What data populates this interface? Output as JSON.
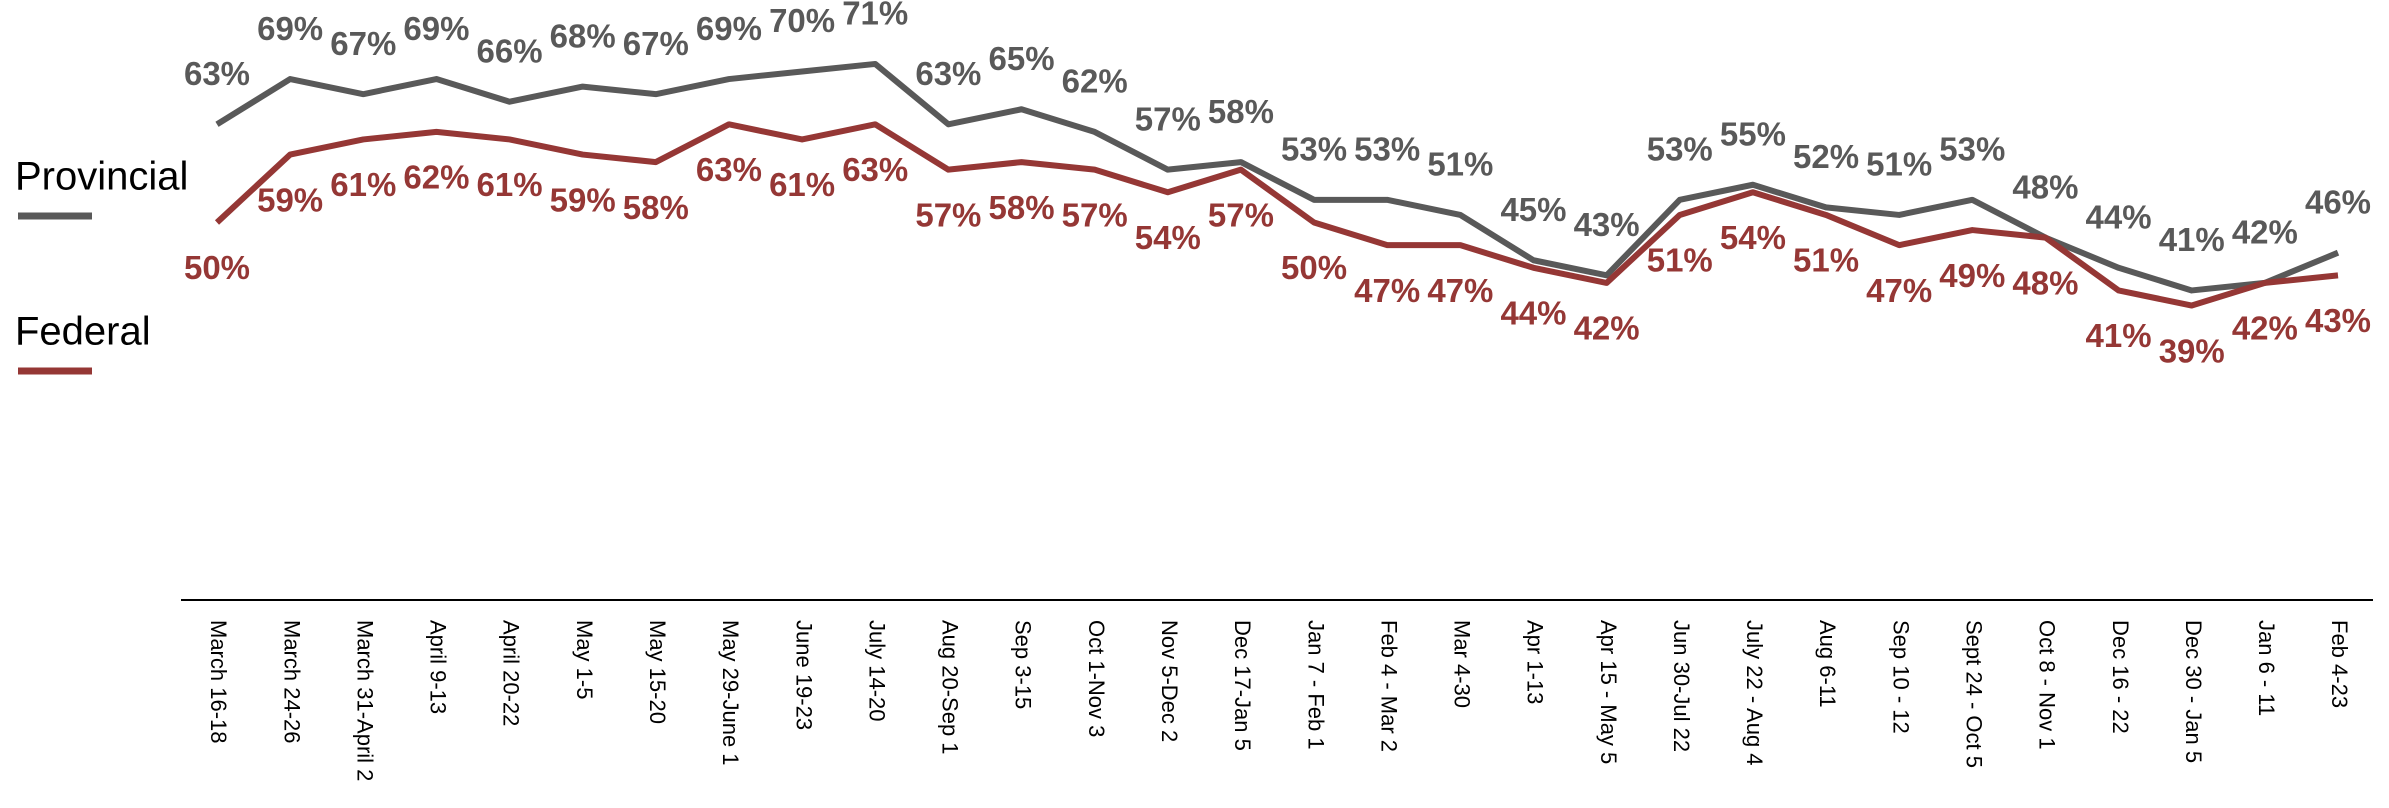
{
  "chart_data": {
    "type": "line",
    "categories": [
      "March 16-18",
      "March 24-26",
      "March 31-April 2",
      "April 9-13",
      "April 20-22",
      "May 1-5",
      "May 15-20",
      "May 29-June 1",
      "June 19-23",
      "July 14-20",
      "Aug 20-Sep 1",
      "Sep 3-15",
      "Oct 1-Nov 3",
      "Nov 5-Dec 2",
      "Dec 17-Jan 5",
      "Jan 7 - Feb 1",
      "Feb 4 - Mar 2",
      "Mar 4-30",
      "Apr 1-13",
      "Apr 15 - May 5",
      "Jun 30-Jul 22",
      "July 22 - Aug 4",
      "Aug 6-11",
      "Sep 10 - 12",
      "Sept 24 - Oct 5",
      "Oct 8 - Nov 1",
      "Dec 16 - 22",
      "Dec 30 - Jan 5",
      "Jan 6 - 11",
      "Feb 4-23"
    ],
    "series": [
      {
        "name": "Provincial",
        "color": "#595959",
        "values": [
          63,
          69,
          67,
          69,
          66,
          68,
          67,
          69,
          70,
          71,
          63,
          65,
          62,
          57,
          58,
          53,
          53,
          51,
          45,
          43,
          53,
          55,
          52,
          51,
          53,
          48,
          44,
          41,
          42,
          46
        ],
        "value_labels": [
          "63%",
          "69%",
          "67%",
          "69%",
          "66%",
          "68%",
          "67%",
          "69%",
          "70%",
          "71%",
          "63%",
          "65%",
          "62%",
          "57%",
          "58%",
          "53%",
          "53%",
          "51%",
          "45%",
          "43%",
          "53%",
          "55%",
          "52%",
          "51%",
          "53%",
          "48%",
          "44%",
          "41%",
          "42%",
          "46%"
        ]
      },
      {
        "name": "Federal",
        "color": "#953735",
        "values": [
          50,
          59,
          61,
          62,
          61,
          59,
          58,
          63,
          61,
          63,
          57,
          58,
          57,
          54,
          57,
          50,
          47,
          47,
          44,
          42,
          51,
          54,
          51,
          47,
          49,
          48,
          41,
          39,
          42,
          43
        ],
        "value_labels": [
          "50%",
          "59%",
          "61%",
          "62%",
          "61%",
          "59%",
          "58%",
          "63%",
          "61%",
          "63%",
          "57%",
          "58%",
          "57%",
          "54%",
          "57%",
          "50%",
          "47%",
          "47%",
          "44%",
          "42%",
          "51%",
          "54%",
          "51%",
          "47%",
          "49%",
          "48%",
          "41%",
          "39%",
          "42%",
          "43%"
        ]
      }
    ]
  }
}
